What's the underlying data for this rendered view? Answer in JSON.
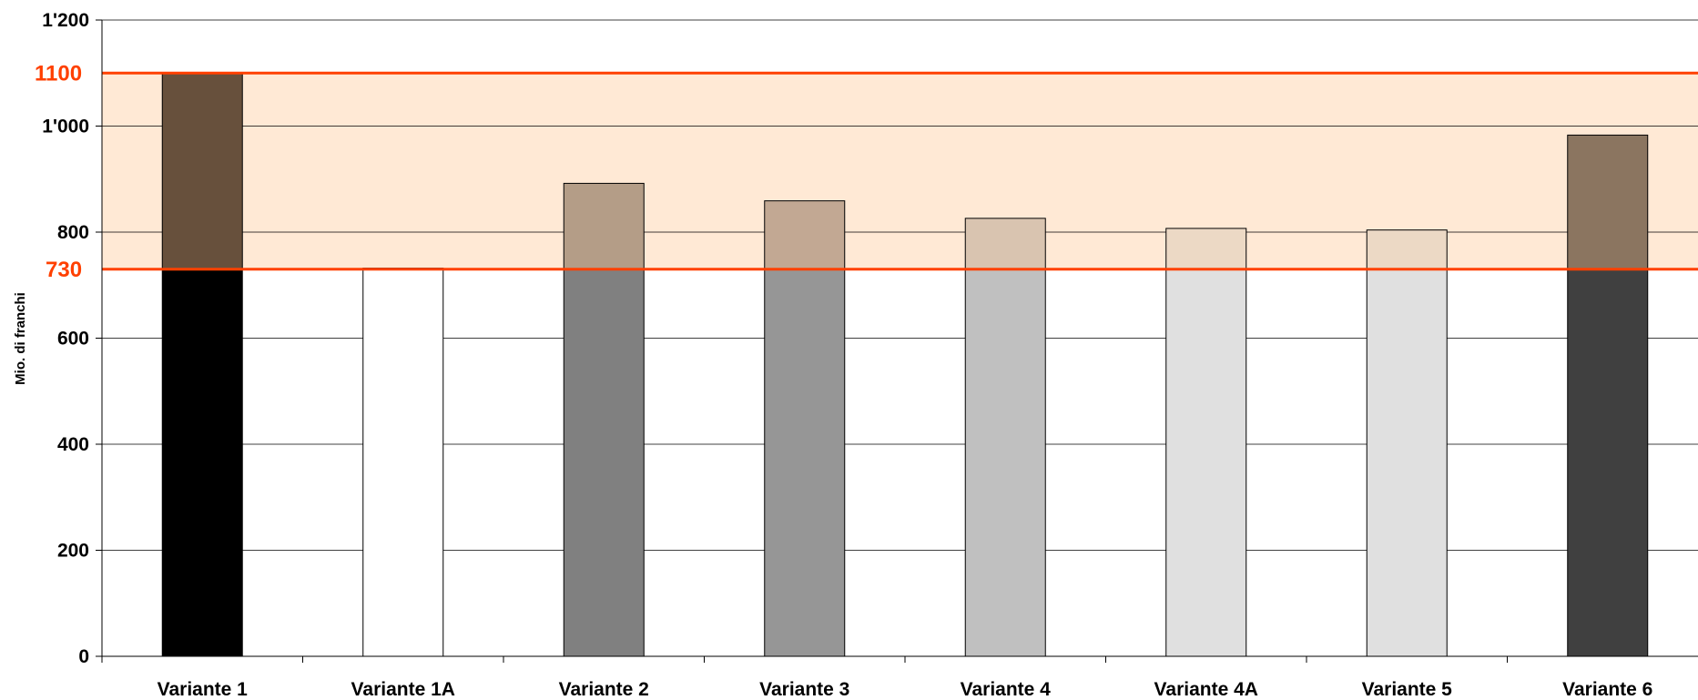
{
  "chart_data": {
    "type": "bar",
    "title": "",
    "xlabel": "",
    "ylabel": "Mio. di franchi",
    "ylim": [
      0,
      1200
    ],
    "yticks": [
      {
        "value": 0,
        "label": "0"
      },
      {
        "value": 200,
        "label": "200"
      },
      {
        "value": 400,
        "label": "400"
      },
      {
        "value": 600,
        "label": "600"
      },
      {
        "value": 800,
        "label": "800"
      },
      {
        "value": 1000,
        "label": "1'000"
      },
      {
        "value": 1200,
        "label": "1'200"
      }
    ],
    "categories": [
      "Variante 1",
      "Variante 1A",
      "Variante 2",
      "Variante 3",
      "Variante 4",
      "Variante 4A",
      "Variante 5",
      "Variante 6"
    ],
    "values": [
      1100,
      732,
      892,
      859,
      826,
      807,
      804,
      983
    ],
    "base_colors": [
      "#000000",
      "#ffffff",
      "#808080",
      "#969696",
      "#c0c0c0",
      "#e0e0e0",
      "#e0e0e0",
      "#404040"
    ],
    "band_colors": [
      "#67503c",
      "#ffffff",
      "#b49d87",
      "#c2a893",
      "#d9c4b0",
      "#ecd9c5",
      "#ecd9c5",
      "#8b7560"
    ],
    "grid": true,
    "legend": "none",
    "reference_band": {
      "low": 730,
      "high": 1100,
      "low_label": "730",
      "high_label": "1100",
      "fill_color": "#ffe9d5",
      "line_color": "#ff4000"
    }
  }
}
